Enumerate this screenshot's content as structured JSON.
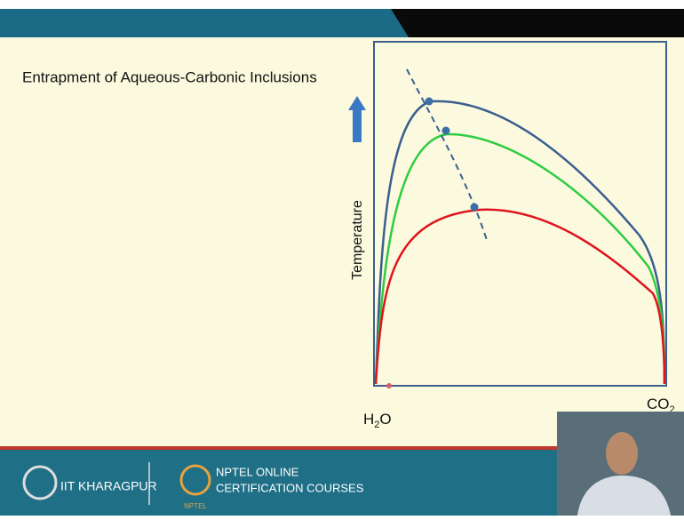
{
  "slide": {
    "title": "Entrapment of Aqueous-Carbonic Inclusions",
    "diagram": {
      "y_axis_label": "Temperature",
      "x_left_label": [
        "H",
        "2",
        "O"
      ],
      "x_right_label": [
        "CO",
        "2"
      ]
    },
    "footer": {
      "institute": "IIT KHARAGPUR",
      "program_line1": "NPTEL ONLINE",
      "program_line2": "CERTIFICATION COURSES",
      "logo_text": "NPTEL"
    }
  }
}
